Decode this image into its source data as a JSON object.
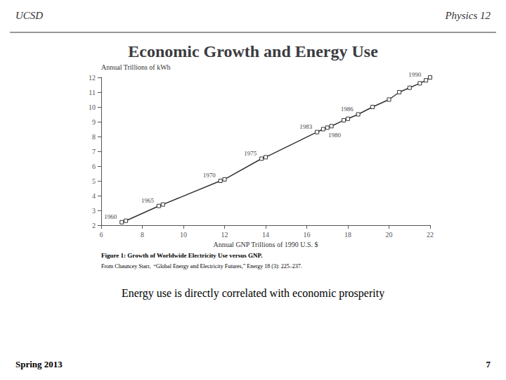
{
  "chart_data": {
    "type": "line",
    "title": "Economic Growth and Energy Use",
    "header_left": "UCSD",
    "header_right": "Physics 12",
    "caption": "Figure 1: Growth of Worldwide Electricity Use versus GNP.",
    "source": "From Chauncey Starr,  “Global Energy and Electricity Futures,” Energy 18 (3): 225–237.",
    "body_text": "Energy use is directly correlated with economic prosperity",
    "footer_left": "Spring 2013",
    "footer_right": "7",
    "xlabel": "Annual GNP Trillions of 1990 U.S. $",
    "ylabel": "Annual Trillions of kWh",
    "x": [
      7.0,
      7.2,
      8.8,
      9.0,
      11.8,
      12.0,
      13.8,
      14.0,
      16.5,
      16.8,
      17.0,
      17.2,
      17.8,
      18.0,
      18.5,
      19.2,
      20.0,
      20.5,
      21.0,
      21.5,
      21.8,
      22.0
    ],
    "values": [
      2.2,
      2.3,
      3.3,
      3.4,
      5.0,
      5.1,
      6.5,
      6.6,
      8.3,
      8.5,
      8.6,
      8.7,
      9.1,
      9.2,
      9.5,
      10.0,
      10.5,
      11.0,
      11.3,
      11.6,
      11.8,
      12.0
    ],
    "xlim": [
      6,
      22
    ],
    "ylim": [
      2,
      12
    ],
    "xticks": [
      6,
      8,
      10,
      12,
      14,
      16,
      18,
      20,
      22
    ],
    "yticks": [
      2,
      3,
      4,
      5,
      6,
      7,
      8,
      9,
      10,
      11,
      12
    ],
    "marker": "square",
    "annotations": [
      {
        "text": "1960",
        "x": 7.0,
        "y": 2.2
      },
      {
        "text": "1965",
        "x": 8.8,
        "y": 3.3
      },
      {
        "text": "1970",
        "x": 11.8,
        "y": 5.0
      },
      {
        "text": "1975",
        "x": 13.8,
        "y": 6.5
      },
      {
        "text": "1980",
        "x": 16.8,
        "y": 8.5
      },
      {
        "text": "1983",
        "x": 16.5,
        "y": 8.3
      },
      {
        "text": "1986",
        "x": 18.5,
        "y": 9.5
      },
      {
        "text": "1990",
        "x": 21.8,
        "y": 11.8
      }
    ]
  }
}
